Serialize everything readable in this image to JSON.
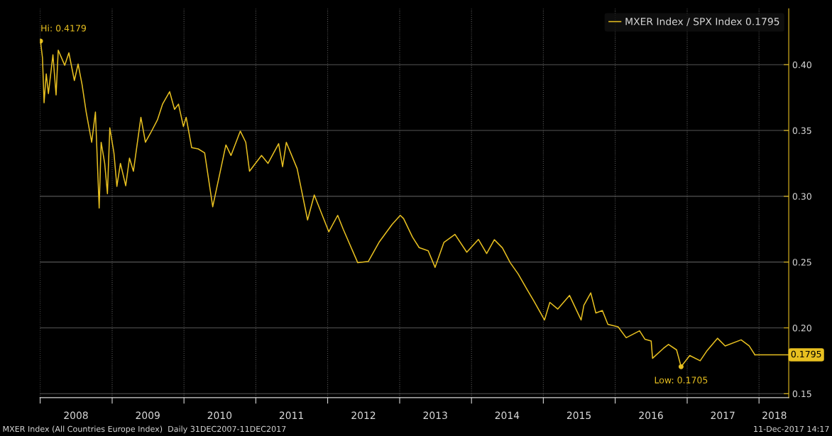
{
  "chart_data": {
    "type": "line",
    "x": [
      "2008-01-03",
      "2008-01-13",
      "2008-01-21",
      "2008-02-01",
      "2008-02-12",
      "2008-03-06",
      "2008-03-22",
      "2008-04-02",
      "2008-05-05",
      "2008-05-26",
      "2008-06-23",
      "2008-07-12",
      "2008-08-01",
      "2008-08-22",
      "2008-09-19",
      "2008-10-08",
      "2008-10-27",
      "2008-11-06",
      "2008-11-24",
      "2008-12-08",
      "2008-12-20",
      "2009-01-10",
      "2009-01-25",
      "2009-02-12",
      "2009-03-11",
      "2009-03-30",
      "2009-04-19",
      "2009-05-27",
      "2009-06-19",
      "2009-07-15",
      "2009-08-19",
      "2009-09-14",
      "2009-10-20",
      "2009-11-14",
      "2009-12-04",
      "2009-12-29",
      "2010-01-12",
      "2010-02-09",
      "2010-03-14",
      "2010-04-16",
      "2010-05-27",
      "2010-06-16",
      "2010-08-02",
      "2010-08-28",
      "2010-10-14",
      "2010-11-11",
      "2010-11-30",
      "2011-01-30",
      "2011-03-04",
      "2011-04-27",
      "2011-05-17",
      "2011-06-05",
      "2011-07-30",
      "2011-09-21",
      "2011-10-25",
      "2012-01-07",
      "2012-02-21",
      "2012-03-20",
      "2012-06-02",
      "2012-07-26",
      "2012-09-18",
      "2012-11-23",
      "2013-01-04",
      "2013-01-21",
      "2013-03-07",
      "2013-04-10",
      "2013-05-26",
      "2013-06-30",
      "2013-08-14",
      "2013-10-09",
      "2013-12-08",
      "2014-02-05",
      "2014-03-19",
      "2014-04-27",
      "2014-06-07",
      "2014-07-17",
      "2014-08-26",
      "2014-10-12",
      "2014-11-14",
      "2015-01-07",
      "2015-02-03",
      "2015-03-15",
      "2015-05-14",
      "2015-07-12",
      "2015-07-26",
      "2015-08-30",
      "2015-09-25",
      "2015-10-28",
      "2015-11-25",
      "2016-01-16",
      "2016-02-26",
      "2016-05-04",
      "2016-05-31",
      "2016-07-02",
      "2016-07-09",
      "2016-09-02",
      "2016-09-28",
      "2016-11-08",
      "2016-12-01",
      "2017-01-14",
      "2017-03-08",
      "2017-04-10",
      "2017-06-04",
      "2017-07-13",
      "2017-10-02",
      "2017-11-12",
      "2017-12-11"
    ],
    "series": [
      {
        "name": "MXER Index / SPX Index 0.1795",
        "color": "#e8c020",
        "values": [
          0.4179,
          0.405,
          0.371,
          0.393,
          0.378,
          0.4075,
          0.377,
          0.411,
          0.3995,
          0.409,
          0.388,
          0.4005,
          0.385,
          0.364,
          0.341,
          0.364,
          0.291,
          0.341,
          0.325,
          0.302,
          0.352,
          0.333,
          0.3075,
          0.325,
          0.308,
          0.329,
          0.319,
          0.36,
          0.341,
          0.348,
          0.358,
          0.37,
          0.3795,
          0.366,
          0.37,
          0.353,
          0.36,
          0.337,
          0.336,
          0.333,
          0.292,
          0.306,
          0.339,
          0.331,
          0.3495,
          0.341,
          0.319,
          0.331,
          0.325,
          0.34,
          0.3225,
          0.341,
          0.321,
          0.282,
          0.301,
          0.273,
          0.2855,
          0.275,
          0.2495,
          0.2505,
          0.265,
          0.2785,
          0.2855,
          0.283,
          0.269,
          0.261,
          0.2586,
          0.246,
          0.265,
          0.271,
          0.2575,
          0.2672,
          0.2565,
          0.267,
          0.2608,
          0.2495,
          0.241,
          0.2287,
          0.2204,
          0.206,
          0.2194,
          0.2143,
          0.2247,
          0.206,
          0.2172,
          0.2266,
          0.2113,
          0.2132,
          0.2027,
          0.2008,
          0.1925,
          0.1978,
          0.1914,
          0.19,
          0.1769,
          0.1844,
          0.1874,
          0.1833,
          0.1705,
          0.179,
          0.175,
          0.1823,
          0.1921,
          0.1863,
          0.1909,
          0.1863,
          0.1795
        ]
      }
    ],
    "xlim": [
      "2007-12-31",
      "2018-06-01"
    ],
    "xticks": [
      {
        "value": "2008-01-01",
        "label": null
      },
      {
        "value": "2008-07-01",
        "label": "2008"
      },
      {
        "value": "2009-01-01",
        "label": null
      },
      {
        "value": "2009-07-01",
        "label": "2009"
      },
      {
        "value": "2010-01-01",
        "label": null
      },
      {
        "value": "2010-07-01",
        "label": "2010"
      },
      {
        "value": "2011-01-01",
        "label": null
      },
      {
        "value": "2011-07-01",
        "label": "2011"
      },
      {
        "value": "2012-01-01",
        "label": null
      },
      {
        "value": "2012-07-01",
        "label": "2012"
      },
      {
        "value": "2013-01-01",
        "label": null
      },
      {
        "value": "2013-07-01",
        "label": "2013"
      },
      {
        "value": "2014-01-01",
        "label": null
      },
      {
        "value": "2014-07-01",
        "label": "2014"
      },
      {
        "value": "2015-01-01",
        "label": null
      },
      {
        "value": "2015-07-01",
        "label": "2015"
      },
      {
        "value": "2016-01-01",
        "label": null
      },
      {
        "value": "2016-07-01",
        "label": "2016"
      },
      {
        "value": "2017-01-01",
        "label": null
      },
      {
        "value": "2017-07-01",
        "label": "2017"
      },
      {
        "value": "2018-01-01",
        "label": null
      },
      {
        "value": "2018-03-20",
        "label": "2018"
      }
    ],
    "ylim": [
      0.147,
      0.4425
    ],
    "yticks": [
      {
        "value": 0.15,
        "label": "0.15"
      },
      {
        "value": 0.2,
        "label": "0.20"
      },
      {
        "value": 0.25,
        "label": "0.25"
      },
      {
        "value": 0.3,
        "label": "0.30"
      },
      {
        "value": 0.35,
        "label": "0.35"
      },
      {
        "value": 0.4,
        "label": "0.40"
      }
    ],
    "grid": true,
    "ref_lines": [
      {
        "axis": "y",
        "value": 0.1795,
        "label": "0.1795",
        "color": "#e8c020"
      }
    ],
    "legend": "top right",
    "marker": "none",
    "annotations": [
      {
        "text": "Hi: 0.4179",
        "x": "2008-01-03",
        "y": 0.4179
      },
      {
        "text": "Low: 0.1705",
        "x": "2016-12-01",
        "y": 0.1705
      },
      "MXER Index (All Countries Europe Index)  Daily 31DEC2007-11DEC2017",
      "11-Dec-2017 14:17"
    ]
  }
}
